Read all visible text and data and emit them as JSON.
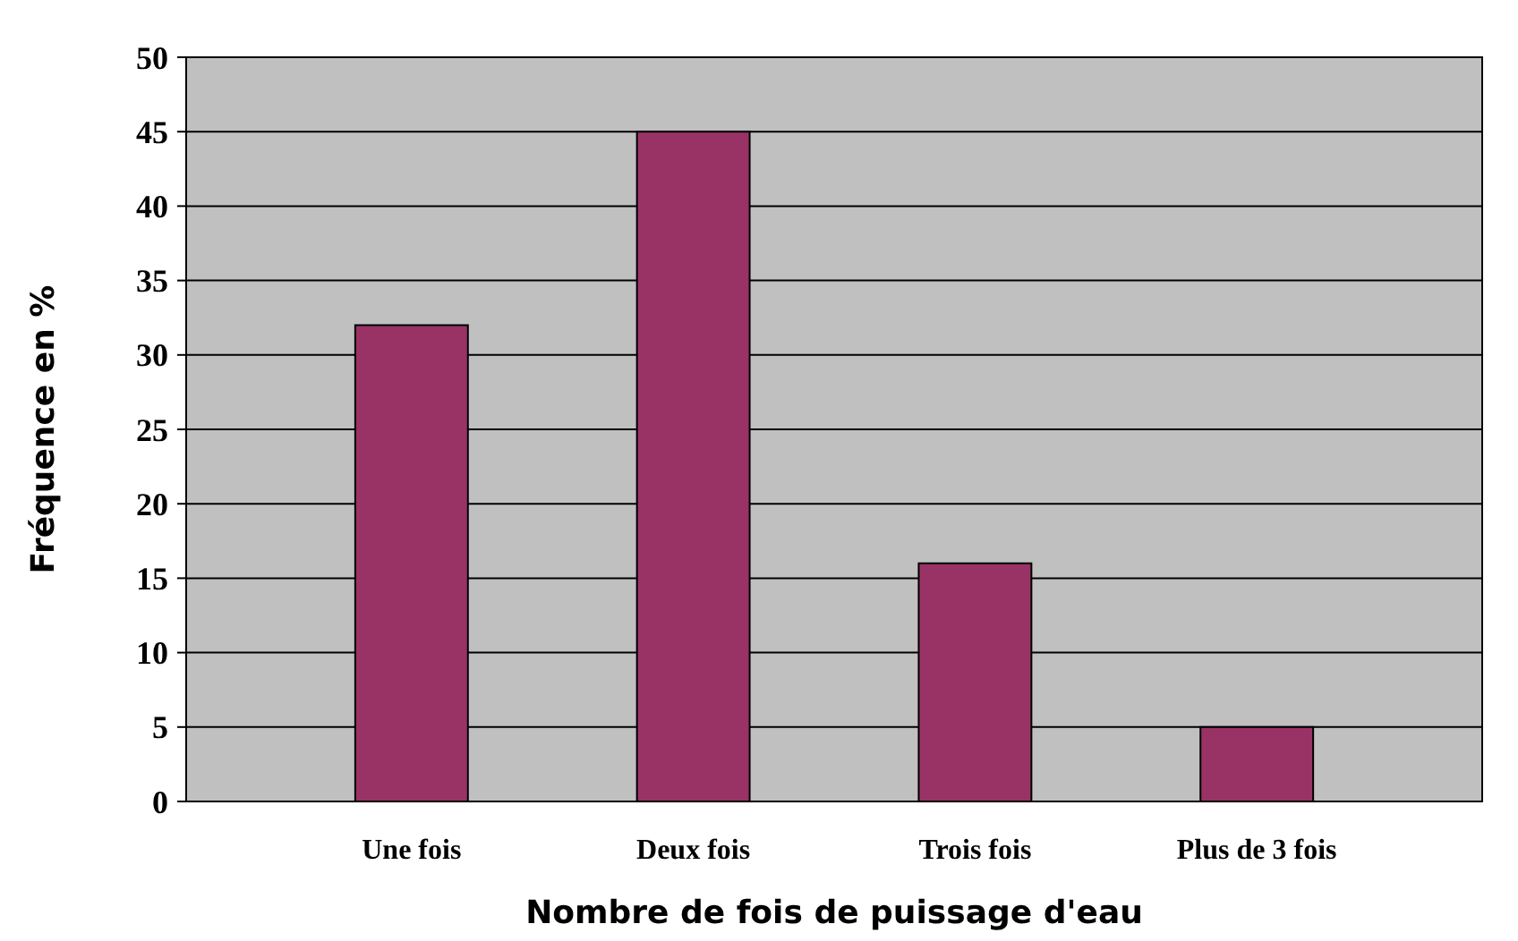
{
  "chart_data": {
    "type": "bar",
    "xlabel": "Nombre de fois de puissage d'eau",
    "ylabel": "Fréquence en %",
    "categories": [
      "Une fois",
      "Deux fois",
      "Trois fois",
      "Plus de 3 fois"
    ],
    "values": [
      32,
      45,
      16,
      5
    ],
    "color": "#993366",
    "ylim": [
      0,
      50
    ],
    "yticks": [
      0,
      5,
      10,
      15,
      20,
      25,
      30,
      35,
      40,
      45,
      50
    ],
    "grid": "y"
  }
}
